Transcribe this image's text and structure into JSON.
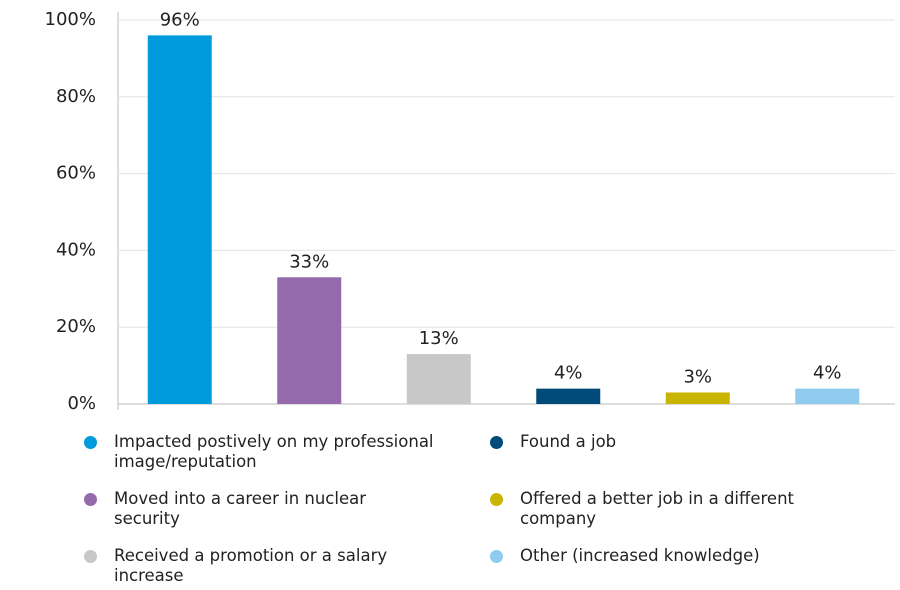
{
  "chart_data": {
    "type": "bar",
    "categories": [
      "Impacted postively on my professional image/reputation",
      "Moved into a career in nuclear security",
      "Received a promotion or a salary increase",
      "Found a job",
      "Offered a better job in a different company",
      "Other (increased knowledge)"
    ],
    "values": [
      96,
      33,
      13,
      4,
      3,
      4
    ],
    "value_labels": [
      "96%",
      "33%",
      "13%",
      "4%",
      "3%",
      "4%"
    ],
    "colors": [
      "#009bdc",
      "#946aad",
      "#c8c8c8",
      "#004b7a",
      "#c9b400",
      "#8fcbee"
    ],
    "ylim": [
      0,
      100
    ],
    "yticks": [
      {
        "value": 0,
        "label": "0%"
      },
      {
        "value": 20,
        "label": "20%"
      },
      {
        "value": 40,
        "label": "40%"
      },
      {
        "value": 60,
        "label": "60%"
      },
      {
        "value": 80,
        "label": "80%"
      },
      {
        "value": 100,
        "label": "100%"
      }
    ],
    "grid": true
  }
}
